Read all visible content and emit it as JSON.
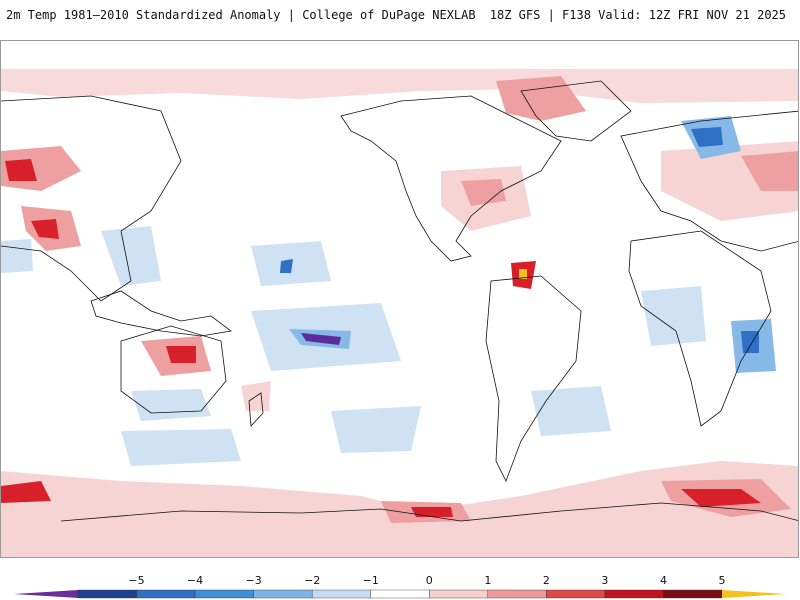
{
  "header": {
    "title": "2m Temp 1981–2010 Standardized Anomaly | College of DuPage NEXLAB",
    "run_info": "18Z GFS | F138 Valid: 12Z FRI NOV 21 2025"
  },
  "legend": {
    "labels": [
      "−5",
      "−4",
      "−3",
      "−2",
      "−1",
      "0",
      "1",
      "2",
      "3",
      "4",
      "5"
    ],
    "colors": [
      "#6a2d9c",
      "#1f3f8f",
      "#2f6fc4",
      "#3d8fd8",
      "#7db4e6",
      "#c5dcf2",
      "#ffffff",
      "#f6cfcf",
      "#ec9a9a",
      "#dc4a4a",
      "#c0141e",
      "#7a0d14",
      "#f2c21a"
    ]
  },
  "colors": {
    "warm_light": "#f7d4d4",
    "warm_mid": "#ee9f9f",
    "warm_strong": "#d8202a",
    "warm_extreme": "#8a0d15",
    "cool_light": "#cfe2f4",
    "cool_mid": "#86b8e8",
    "cool_strong": "#2f6fc4",
    "cool_extreme": "#5b2c9a",
    "coastline": "#111111"
  }
}
